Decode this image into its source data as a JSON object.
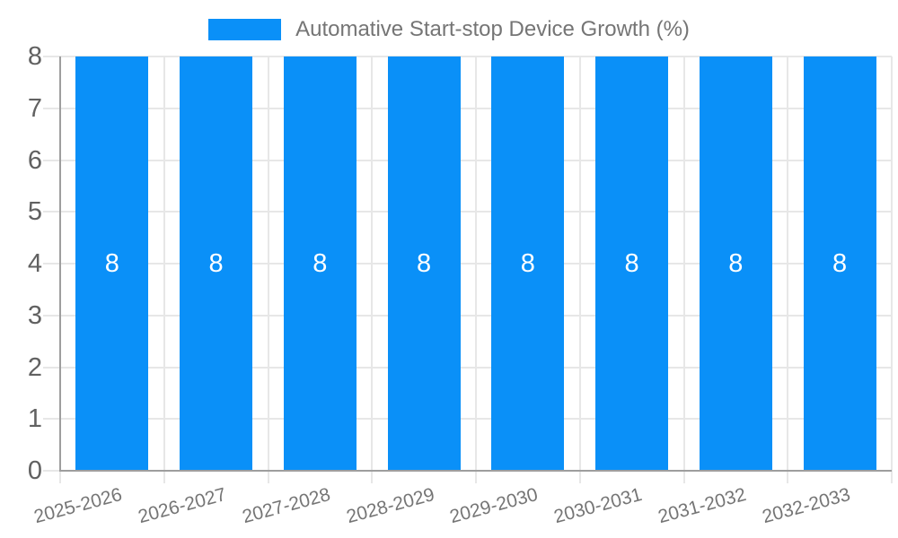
{
  "chart_data": {
    "type": "bar",
    "title": "",
    "legend": {
      "position": "top",
      "label": "Automative Start-stop Device Growth (%)"
    },
    "categories": [
      "2025-2026",
      "2026-2027",
      "2027-2028",
      "2028-2029",
      "2029-2030",
      "2030-2031",
      "2031-2032",
      "2032-2033"
    ],
    "series": [
      {
        "name": "Automative Start-stop Device Growth (%)",
        "values": [
          8,
          8,
          8,
          8,
          8,
          8,
          8,
          8
        ]
      }
    ],
    "value_labels": [
      "8",
      "8",
      "8",
      "8",
      "8",
      "8",
      "8",
      "8"
    ],
    "ylim": [
      0,
      8
    ],
    "yticks": [
      0,
      1,
      2,
      3,
      4,
      5,
      6,
      7,
      8
    ],
    "grid": true,
    "colors": {
      "bar": "#0a90f8",
      "grid": "#e7e7e7",
      "axis": "#9e9e9e",
      "x_tick_text": "#757575",
      "y_tick_text": "#616161",
      "legend_text": "#757575",
      "value_label_text": "#ffffff",
      "background": "#ffffff"
    }
  }
}
